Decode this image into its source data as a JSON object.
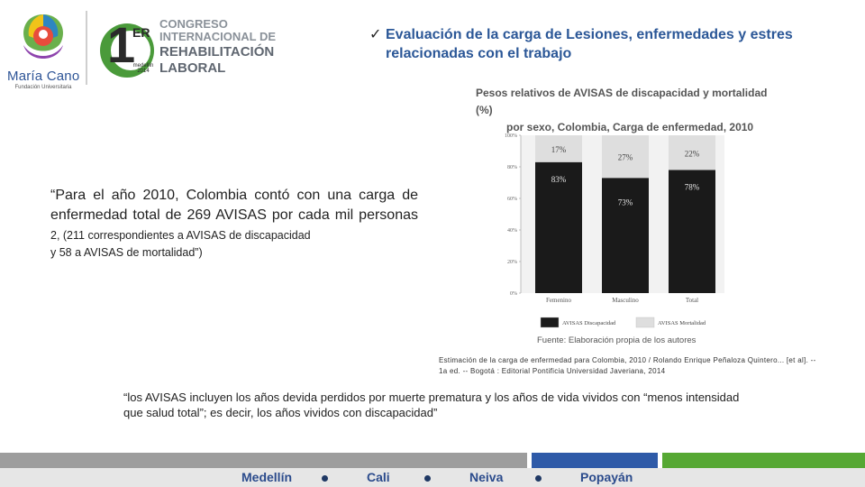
{
  "logo": {
    "name": "María Cano",
    "subtitle": "Fundación Universitaria",
    "congreso_number": "1",
    "congreso_sup": "ER",
    "congreso_line1": "CONGRESO",
    "congreso_line2": "INTERNACIONAL DE",
    "congreso_line3": "REHABILITACIÓN",
    "congreso_line4": "LABORAL",
    "congreso_small": "medellín 2014"
  },
  "heading": {
    "check": "✓",
    "text": "Evaluación de la carga de Lesiones, enfermedades y estres relacionadas con el trabajo"
  },
  "quote": {
    "main": "“Para el año 2010, Colombia contó con una carga de enfermedad total de 269 AVISAS por cada mil personas",
    "small": " 2, (211 correspondientes a AVISAS de discapacidad",
    "continuation": "y 58 a AVISAS de mortalidad”)"
  },
  "chart_data": {
    "type": "bar",
    "stacked": true,
    "title": "Pesos relativos de AVISAS de discapacidad y mortalidad (%) por sexo, Colombia, Carga de enfermedad, 2010",
    "title_line1": "Pesos relativos de AVISAS de discapacidad y mortalidad (%)",
    "title_line2": "por sexo, Colombia, Carga de enfermedad, 2010",
    "categories": [
      "Femenino",
      "Masculino",
      "Total"
    ],
    "series": [
      {
        "name": "AVISAS Discapacidad",
        "values": [
          83,
          73,
          78
        ],
        "labels": [
          "83%",
          "73%",
          "78%"
        ],
        "color": "#1a1a1a"
      },
      {
        "name": "AVISAS Mortalidad",
        "values": [
          17,
          27,
          22
        ],
        "labels": [
          "17%",
          "27%",
          "22%"
        ],
        "color": "#dedede"
      }
    ],
    "yticks": [
      "0%",
      "20%",
      "40%",
      "60%",
      "80%",
      "100%"
    ],
    "ylim": [
      0,
      100
    ],
    "source": "Fuente: Elaboración propia de los autores"
  },
  "citation": "Estimación de la carga de enfermedad para Colombia, 2010 / Rolando Enrique Peñaloza Quintero... [et al]. -- 1a ed. -- Bogotá : Editorial Pontificia Universidad Javeriana, 2014",
  "definition": "“los AVISAS incluyen los años devida perdidos por muerte prematura y los años de vida vividos con “menos intensidad que salud total”; es decir, los años vividos con discapacidad”",
  "footer": {
    "cities": [
      "Medellín",
      "Cali",
      "Neiva",
      "Popayán"
    ],
    "colors": {
      "gray": "#9d9d9d",
      "blue": "#2e5aa8",
      "green": "#56a833",
      "text": "#2b4b8c"
    }
  }
}
